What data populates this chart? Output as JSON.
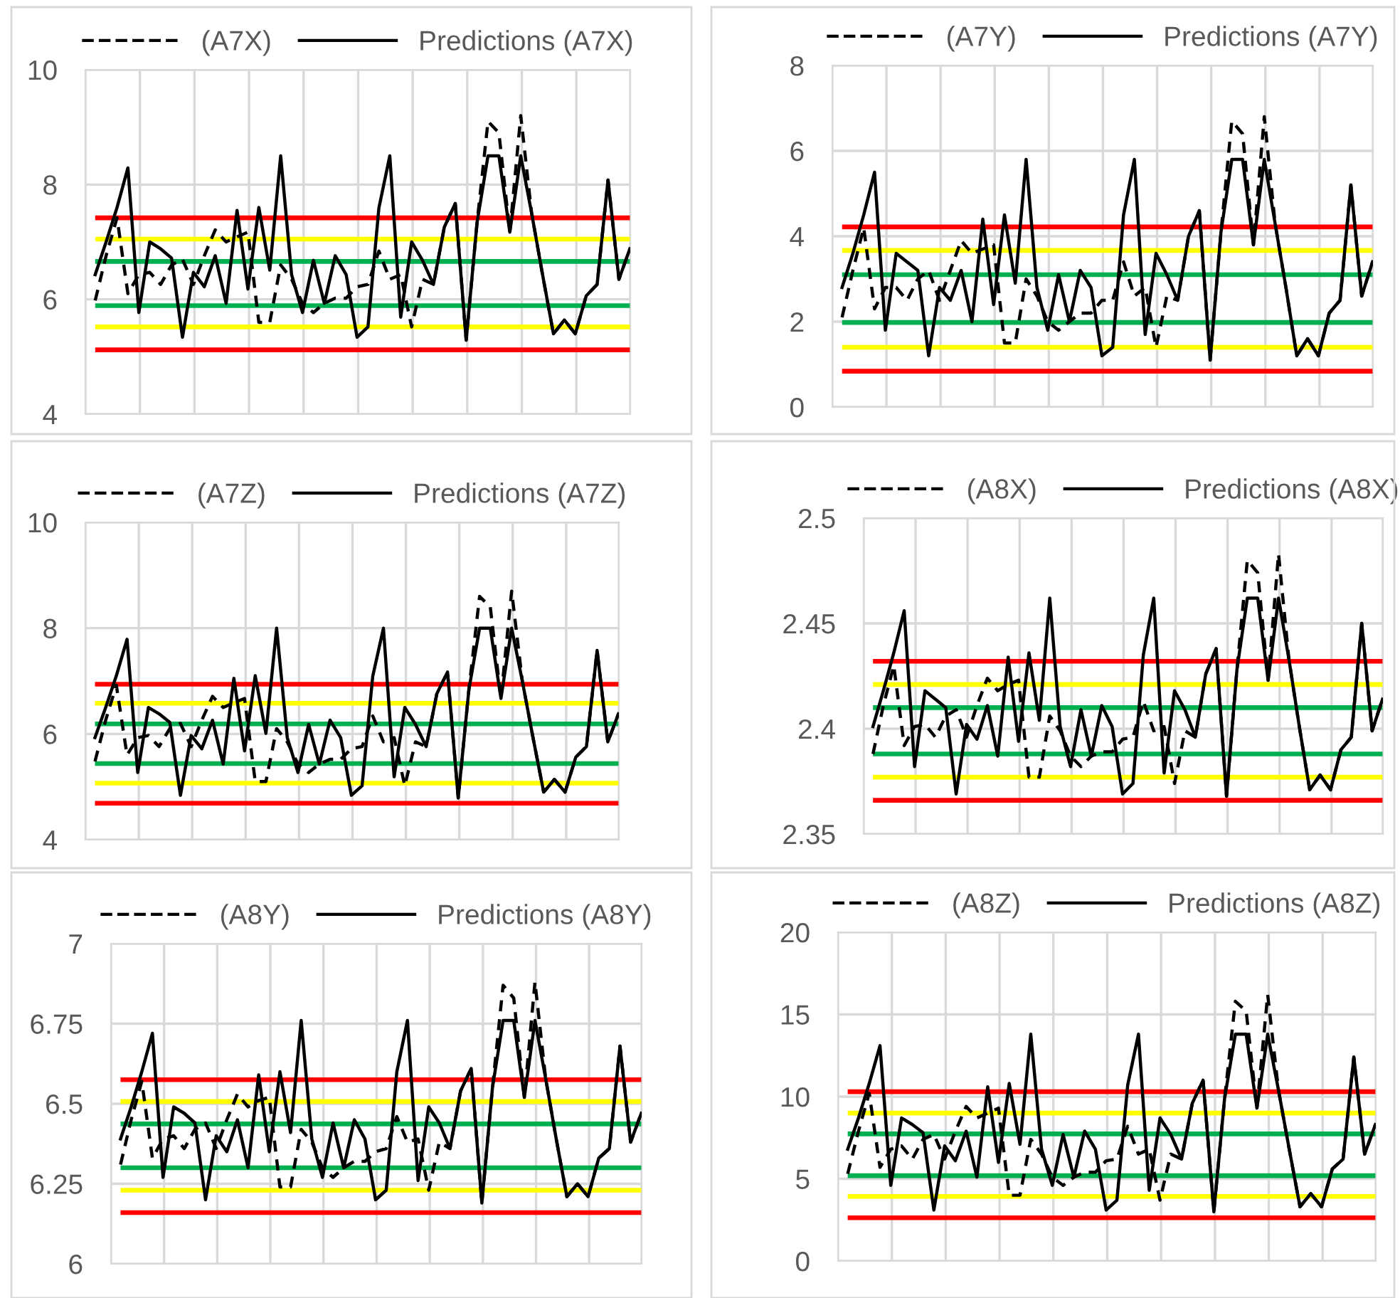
{
  "chart_data": [
    {
      "type": "line",
      "categories": [
        null,
        null,
        null,
        null,
        null,
        null,
        null,
        null,
        null,
        null,
        null,
        null,
        null,
        null,
        null,
        null,
        null,
        null,
        null,
        null,
        null,
        null,
        null,
        null,
        null,
        null,
        null,
        null,
        null,
        null,
        null,
        null,
        null,
        null,
        null,
        null,
        null,
        null,
        null,
        null,
        null,
        null,
        null,
        null,
        null,
        null,
        null,
        null,
        null,
        null
      ],
      "ylim": [
        4,
        10
      ],
      "yticks": [
        4,
        6,
        8,
        10
      ],
      "grid": true,
      "legend": "top",
      "tick_labels": "y",
      "series": [
        {
          "name": "(A7X)",
          "color": "#000000",
          "line_style": "dashed",
          "values": [
            5.98,
            6.76,
            7.42,
            6.1,
            6.43,
            6.47,
            6.26,
            6.6,
            6.7,
            6.26,
            6.76,
            7.21,
            7.0,
            7.09,
            7.17,
            5.6,
            5.6,
            6.6,
            6.35,
            5.93,
            5.77,
            5.93,
            6.02,
            6.02,
            6.22,
            6.26,
            6.84,
            6.35,
            6.43,
            5.52,
            6.35,
            6.26,
            7.26,
            7.67,
            5.29,
            7.34,
            9.1,
            8.9,
            7.17,
            9.2,
            7.5,
            6.43,
            5.4,
            5.64,
            5.4,
            6.06,
            6.26,
            8.08,
            6.35,
            6.88
          ]
        },
        {
          "name": "Predictions (A7X)",
          "color": "#000000",
          "line_style": "solid",
          "values": [
            6.43,
            7.0,
            7.6,
            8.29,
            5.77,
            7.0,
            6.88,
            6.72,
            5.34,
            6.47,
            6.22,
            6.76,
            5.93,
            7.55,
            6.18,
            7.6,
            6.51,
            8.5,
            6.43,
            5.77,
            6.68,
            5.93,
            6.76,
            6.43,
            5.34,
            5.52,
            7.59,
            8.5,
            5.69,
            7.0,
            6.68,
            6.26,
            7.26,
            7.67,
            5.29,
            7.34,
            8.5,
            8.5,
            7.17,
            8.5,
            7.5,
            6.43,
            5.4,
            5.64,
            5.4,
            6.06,
            6.26,
            8.08,
            6.35,
            6.88
          ]
        }
      ],
      "ref_lines": [
        {
          "axis": "y",
          "value": 7.42,
          "color": "#ff0000"
        },
        {
          "axis": "y",
          "value": 7.05,
          "color": "#ffff00"
        },
        {
          "axis": "y",
          "value": 6.66,
          "color": "#00b050"
        },
        {
          "axis": "y",
          "value": 5.89,
          "color": "#00b050"
        },
        {
          "axis": "y",
          "value": 5.52,
          "color": "#ffff00"
        },
        {
          "axis": "y",
          "value": 5.12,
          "color": "#ff0000"
        }
      ]
    },
    {
      "type": "line",
      "categories": [
        null,
        null,
        null,
        null,
        null,
        null,
        null,
        null,
        null,
        null,
        null,
        null,
        null,
        null,
        null,
        null,
        null,
        null,
        null,
        null,
        null,
        null,
        null,
        null,
        null,
        null,
        null,
        null,
        null,
        null,
        null,
        null,
        null,
        null,
        null,
        null,
        null,
        null,
        null,
        null,
        null,
        null,
        null,
        null,
        null,
        null,
        null,
        null,
        null,
        null
      ],
      "ylim": [
        0,
        8
      ],
      "yticks": [
        0,
        2,
        4,
        6,
        8
      ],
      "grid": true,
      "legend": "top",
      "tick_labels": "y",
      "series": [
        {
          "name": "(A7Y)",
          "color": "#000000",
          "line_style": "dashed",
          "values": [
            2.1,
            3.2,
            4.2,
            2.3,
            2.8,
            2.8,
            2.5,
            3.0,
            3.2,
            2.5,
            3.2,
            3.9,
            3.6,
            3.7,
            3.8,
            1.5,
            1.5,
            3.0,
            2.6,
            2.0,
            1.8,
            2.0,
            2.2,
            2.2,
            2.5,
            2.5,
            3.4,
            2.6,
            2.8,
            1.4,
            2.6,
            2.5,
            4.0,
            4.6,
            1.1,
            4.1,
            6.7,
            6.4,
            3.8,
            6.8,
            4.3,
            2.8,
            1.2,
            1.6,
            1.2,
            2.2,
            2.5,
            5.2,
            2.6,
            3.4
          ]
        },
        {
          "name": "Predictions (A7Y)",
          "color": "#000000",
          "line_style": "solid",
          "values": [
            2.8,
            3.6,
            4.5,
            5.5,
            1.8,
            3.6,
            3.4,
            3.2,
            1.2,
            2.8,
            2.5,
            3.2,
            2.0,
            4.4,
            2.4,
            4.5,
            2.9,
            5.8,
            2.8,
            1.8,
            3.1,
            2.0,
            3.2,
            2.8,
            1.2,
            1.4,
            4.5,
            5.8,
            1.7,
            3.6,
            3.1,
            2.5,
            4.0,
            4.6,
            1.1,
            4.1,
            5.8,
            5.8,
            3.8,
            5.8,
            4.3,
            2.8,
            1.2,
            1.6,
            1.2,
            2.2,
            2.5,
            5.2,
            2.6,
            3.4
          ]
        }
      ],
      "ref_lines": [
        {
          "axis": "y",
          "value": 4.22,
          "color": "#ff0000"
        },
        {
          "axis": "y",
          "value": 3.67,
          "color": "#ffff00"
        },
        {
          "axis": "y",
          "value": 3.1,
          "color": "#00b050"
        },
        {
          "axis": "y",
          "value": 1.98,
          "color": "#00b050"
        },
        {
          "axis": "y",
          "value": 1.4,
          "color": "#ffff00"
        },
        {
          "axis": "y",
          "value": 0.84,
          "color": "#ff0000"
        }
      ]
    },
    {
      "type": "line",
      "categories": [
        null,
        null,
        null,
        null,
        null,
        null,
        null,
        null,
        null,
        null,
        null,
        null,
        null,
        null,
        null,
        null,
        null,
        null,
        null,
        null,
        null,
        null,
        null,
        null,
        null,
        null,
        null,
        null,
        null,
        null,
        null,
        null,
        null,
        null,
        null,
        null,
        null,
        null,
        null,
        null,
        null,
        null,
        null,
        null,
        null,
        null,
        null,
        null,
        null,
        null
      ],
      "ylim": [
        4,
        10
      ],
      "yticks": [
        4,
        6,
        8,
        10
      ],
      "grid": true,
      "legend": "top",
      "tick_labels": "y",
      "series": [
        {
          "name": "(A7Z)",
          "color": "#000000",
          "line_style": "dashed",
          "values": [
            5.48,
            6.26,
            6.92,
            5.6,
            5.93,
            5.97,
            5.76,
            6.1,
            6.2,
            5.76,
            6.26,
            6.71,
            6.5,
            6.59,
            6.67,
            5.1,
            5.1,
            6.1,
            5.85,
            5.43,
            5.27,
            5.43,
            5.52,
            5.52,
            5.72,
            5.76,
            6.34,
            5.85,
            5.93,
            5.02,
            5.85,
            5.76,
            6.76,
            7.17,
            4.79,
            6.84,
            8.6,
            8.4,
            6.67,
            8.7,
            7.0,
            5.93,
            4.9,
            5.14,
            4.9,
            5.56,
            5.76,
            7.58,
            5.85,
            6.38
          ]
        },
        {
          "name": "Predictions (A7Z)",
          "color": "#000000",
          "line_style": "solid",
          "values": [
            5.93,
            6.5,
            7.1,
            7.79,
            5.27,
            6.5,
            6.38,
            6.22,
            4.84,
            5.97,
            5.72,
            6.26,
            5.43,
            7.05,
            5.68,
            7.1,
            6.01,
            8.0,
            5.93,
            5.27,
            6.18,
            5.43,
            6.26,
            5.93,
            4.84,
            5.02,
            7.09,
            8.0,
            5.19,
            6.5,
            6.18,
            5.76,
            6.76,
            7.17,
            4.79,
            6.84,
            8.0,
            8.0,
            6.67,
            8.0,
            7.0,
            5.93,
            4.9,
            5.14,
            4.9,
            5.56,
            5.76,
            7.58,
            5.85,
            6.38
          ]
        }
      ],
      "ref_lines": [
        {
          "axis": "y",
          "value": 6.94,
          "color": "#ff0000"
        },
        {
          "axis": "y",
          "value": 6.58,
          "color": "#ffff00"
        },
        {
          "axis": "y",
          "value": 6.19,
          "color": "#00b050"
        },
        {
          "axis": "y",
          "value": 5.44,
          "color": "#00b050"
        },
        {
          "axis": "y",
          "value": 5.07,
          "color": "#ffff00"
        },
        {
          "axis": "y",
          "value": 4.69,
          "color": "#ff0000"
        }
      ]
    },
    {
      "type": "line",
      "categories": [
        null,
        null,
        null,
        null,
        null,
        null,
        null,
        null,
        null,
        null,
        null,
        null,
        null,
        null,
        null,
        null,
        null,
        null,
        null,
        null,
        null,
        null,
        null,
        null,
        null,
        null,
        null,
        null,
        null,
        null,
        null,
        null,
        null,
        null,
        null,
        null,
        null,
        null,
        null,
        null,
        null,
        null,
        null,
        null,
        null,
        null,
        null,
        null,
        null,
        null
      ],
      "ylim": [
        2.35,
        2.5
      ],
      "yticks": [
        2.35,
        2.4,
        2.45,
        2.5
      ],
      "grid": true,
      "legend": "top",
      "tick_labels": "y",
      "series": [
        {
          "name": "(A8X)",
          "color": "#000000",
          "line_style": "dashed",
          "values": [
            2.388,
            2.411,
            2.43,
            2.392,
            2.401,
            2.402,
            2.396,
            2.406,
            2.409,
            2.396,
            2.411,
            2.424,
            2.418,
            2.421,
            2.423,
            2.377,
            2.377,
            2.406,
            2.399,
            2.387,
            2.382,
            2.387,
            2.389,
            2.389,
            2.395,
            2.396,
            2.413,
            2.399,
            2.401,
            2.374,
            2.399,
            2.396,
            2.426,
            2.438,
            2.368,
            2.428,
            2.48,
            2.474,
            2.423,
            2.483,
            2.433,
            2.401,
            2.371,
            2.378,
            2.371,
            2.39,
            2.396,
            2.45,
            2.399,
            2.414
          ]
        },
        {
          "name": "Predictions (A8X)",
          "color": "#000000",
          "line_style": "solid",
          "values": [
            2.401,
            2.418,
            2.436,
            2.456,
            2.382,
            2.418,
            2.414,
            2.41,
            2.369,
            2.402,
            2.395,
            2.411,
            2.387,
            2.434,
            2.394,
            2.436,
            2.404,
            2.462,
            2.401,
            2.382,
            2.409,
            2.387,
            2.411,
            2.401,
            2.369,
            2.374,
            2.435,
            2.462,
            2.379,
            2.418,
            2.409,
            2.396,
            2.426,
            2.438,
            2.368,
            2.428,
            2.462,
            2.462,
            2.423,
            2.462,
            2.433,
            2.401,
            2.371,
            2.378,
            2.371,
            2.39,
            2.396,
            2.45,
            2.399,
            2.414
          ]
        }
      ],
      "ref_lines": [
        {
          "axis": "y",
          "value": 2.432,
          "color": "#ff0000"
        },
        {
          "axis": "y",
          "value": 2.421,
          "color": "#ffff00"
        },
        {
          "axis": "y",
          "value": 2.41,
          "color": "#00b050"
        },
        {
          "axis": "y",
          "value": 2.388,
          "color": "#00b050"
        },
        {
          "axis": "y",
          "value": 2.377,
          "color": "#ffff00"
        },
        {
          "axis": "y",
          "value": 2.366,
          "color": "#ff0000"
        }
      ]
    },
    {
      "type": "line",
      "categories": [
        null,
        null,
        null,
        null,
        null,
        null,
        null,
        null,
        null,
        null,
        null,
        null,
        null,
        null,
        null,
        null,
        null,
        null,
        null,
        null,
        null,
        null,
        null,
        null,
        null,
        null,
        null,
        null,
        null,
        null,
        null,
        null,
        null,
        null,
        null,
        null,
        null,
        null,
        null,
        null,
        null,
        null,
        null,
        null,
        null,
        null,
        null,
        null,
        null,
        null
      ],
      "ylim": [
        6,
        7
      ],
      "yticks": [
        6,
        6.25,
        6.5,
        6.75,
        7
      ],
      "grid": true,
      "legend": "top",
      "tick_labels": "y",
      "series": [
        {
          "name": "(A8Y)",
          "color": "#000000",
          "line_style": "dashed",
          "values": [
            6.31,
            6.45,
            6.57,
            6.33,
            6.39,
            6.4,
            6.36,
            6.42,
            6.44,
            6.36,
            6.45,
            6.53,
            6.49,
            6.51,
            6.52,
            6.24,
            6.24,
            6.42,
            6.38,
            6.3,
            6.27,
            6.3,
            6.32,
            6.32,
            6.35,
            6.36,
            6.46,
            6.38,
            6.39,
            6.23,
            6.38,
            6.36,
            6.54,
            6.61,
            6.19,
            6.55,
            6.87,
            6.83,
            6.52,
            6.88,
            6.58,
            6.39,
            6.21,
            6.25,
            6.21,
            6.33,
            6.36,
            6.68,
            6.38,
            6.47
          ]
        },
        {
          "name": "Predictions (A8Y)",
          "color": "#000000",
          "line_style": "solid",
          "values": [
            6.39,
            6.49,
            6.6,
            6.72,
            6.27,
            6.49,
            6.47,
            6.44,
            6.2,
            6.4,
            6.35,
            6.45,
            6.3,
            6.59,
            6.35,
            6.6,
            6.41,
            6.76,
            6.39,
            6.27,
            6.44,
            6.3,
            6.45,
            6.39,
            6.2,
            6.23,
            6.6,
            6.76,
            6.26,
            6.49,
            6.44,
            6.36,
            6.54,
            6.61,
            6.19,
            6.55,
            6.76,
            6.76,
            6.52,
            6.76,
            6.58,
            6.39,
            6.21,
            6.25,
            6.21,
            6.33,
            6.36,
            6.68,
            6.38,
            6.47
          ]
        }
      ],
      "ref_lines": [
        {
          "axis": "y",
          "value": 6.575,
          "color": "#ff0000"
        },
        {
          "axis": "y",
          "value": 6.507,
          "color": "#ffff00"
        },
        {
          "axis": "y",
          "value": 6.437,
          "color": "#00b050"
        },
        {
          "axis": "y",
          "value": 6.3,
          "color": "#00b050"
        },
        {
          "axis": "y",
          "value": 6.23,
          "color": "#ffff00"
        },
        {
          "axis": "y",
          "value": 6.16,
          "color": "#ff0000"
        }
      ]
    },
    {
      "type": "line",
      "categories": [
        null,
        null,
        null,
        null,
        null,
        null,
        null,
        null,
        null,
        null,
        null,
        null,
        null,
        null,
        null,
        null,
        null,
        null,
        null,
        null,
        null,
        null,
        null,
        null,
        null,
        null,
        null,
        null,
        null,
        null,
        null,
        null,
        null,
        null,
        null,
        null,
        null,
        null,
        null,
        null,
        null,
        null,
        null,
        null,
        null,
        null,
        null,
        null,
        null,
        null
      ],
      "ylim": [
        0,
        20
      ],
      "yticks": [
        0,
        5,
        10,
        15,
        20
      ],
      "grid": true,
      "legend": "top",
      "tick_labels": "y",
      "series": [
        {
          "name": "(A8Z)",
          "color": "#000000",
          "line_style": "dashed",
          "values": [
            5.3,
            7.9,
            10.2,
            5.7,
            6.8,
            7.0,
            6.2,
            7.4,
            7.7,
            6.2,
            7.9,
            9.4,
            8.7,
            9.0,
            9.3,
            4.0,
            4.0,
            7.4,
            6.5,
            5.1,
            4.6,
            5.1,
            5.4,
            5.4,
            6.1,
            6.2,
            8.2,
            6.5,
            6.8,
            3.7,
            6.5,
            6.2,
            9.6,
            11.0,
            3.0,
            9.9,
            15.8,
            15.2,
            9.3,
            16.2,
            10.4,
            6.8,
            3.3,
            4.1,
            3.3,
            5.6,
            6.2,
            12.4,
            6.5,
            8.3
          ]
        },
        {
          "name": "Predictions (A8Z)",
          "color": "#000000",
          "line_style": "solid",
          "values": [
            6.8,
            8.7,
            10.8,
            13.1,
            4.6,
            8.7,
            8.3,
            7.8,
            3.1,
            7.0,
            6.1,
            7.9,
            5.1,
            10.6,
            6.0,
            10.8,
            7.1,
            13.8,
            6.8,
            4.6,
            7.7,
            5.1,
            7.9,
            6.8,
            3.1,
            3.7,
            10.7,
            13.8,
            4.3,
            8.7,
            7.7,
            6.2,
            9.6,
            11.0,
            3.0,
            9.9,
            13.8,
            13.8,
            9.3,
            13.8,
            10.4,
            6.8,
            3.3,
            4.1,
            3.3,
            5.6,
            6.2,
            12.4,
            6.5,
            8.3
          ]
        }
      ],
      "ref_lines": [
        {
          "axis": "y",
          "value": 10.3,
          "color": "#ff0000"
        },
        {
          "axis": "y",
          "value": 9.0,
          "color": "#ffff00"
        },
        {
          "axis": "y",
          "value": 7.73,
          "color": "#00b050"
        },
        {
          "axis": "y",
          "value": 5.19,
          "color": "#00b050"
        },
        {
          "axis": "y",
          "value": 3.93,
          "color": "#ffff00"
        },
        {
          "axis": "y",
          "value": 2.63,
          "color": "#ff0000"
        }
      ]
    }
  ]
}
